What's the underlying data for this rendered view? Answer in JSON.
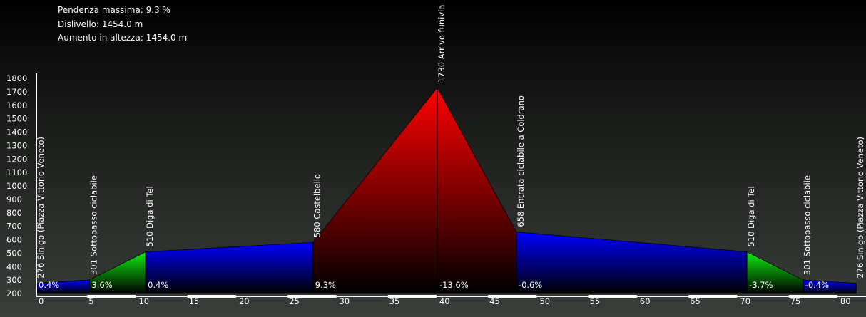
{
  "stats": {
    "max_gradient": "Pendenza massima: 9.3 %",
    "elevation_gain": "Dislivello: 1454.0 m",
    "total_climb": "Aumento in altezza: 1454.0 m"
  },
  "chart_data": {
    "type": "area",
    "title": "",
    "xlabel": "",
    "ylabel": "",
    "xlim": [
      0,
      82
    ],
    "ylim": [
      200,
      1800
    ],
    "x_ticks": [
      0,
      5,
      10,
      15,
      20,
      25,
      30,
      35,
      40,
      45,
      50,
      55,
      60,
      65,
      70,
      75,
      80
    ],
    "y_ticks": [
      200,
      300,
      400,
      500,
      600,
      700,
      800,
      900,
      1000,
      1100,
      1200,
      1300,
      1400,
      1500,
      1600,
      1700,
      1800
    ],
    "points": [
      {
        "x": 0,
        "y": 276,
        "label": "276 Sinigo (Piazza Vittorio Veneto)"
      },
      {
        "x": 5.3,
        "y": 301,
        "label": "301 Sottopasso ciclabile"
      },
      {
        "x": 10.9,
        "y": 510,
        "label": "510 Diga di Tel"
      },
      {
        "x": 27.6,
        "y": 580,
        "label": "580 Castelbello"
      },
      {
        "x": 40.0,
        "y": 1730,
        "label": "1730 Arrivo funivia"
      },
      {
        "x": 47.9,
        "y": 658,
        "label": "658 Entrata ciclabile a Coldrano"
      },
      {
        "x": 70.9,
        "y": 510,
        "label": "510 Diga di Tel"
      },
      {
        "x": 76.5,
        "y": 301,
        "label": "301 Sottopasso ciclabile"
      },
      {
        "x": 81.8,
        "y": 276,
        "label": "276 Sinigo (Piazza Vittorio Veneto)"
      }
    ],
    "segments": [
      {
        "gradient": "0.4%",
        "color": "blue"
      },
      {
        "gradient": "3.6%",
        "color": "green"
      },
      {
        "gradient": "0.4%",
        "color": "blue"
      },
      {
        "gradient": "9.3%",
        "color": "red"
      },
      {
        "gradient": "-13.6%",
        "color": "red"
      },
      {
        "gradient": "-0.6%",
        "color": "blue"
      },
      {
        "gradient": "-3.7%",
        "color": "green"
      },
      {
        "gradient": "-0.4%",
        "color": "blue"
      }
    ],
    "colors": {
      "blue": "#0000ff",
      "green": "#11ee11",
      "red": "#ff0000",
      "axis": "#ffffff"
    }
  }
}
